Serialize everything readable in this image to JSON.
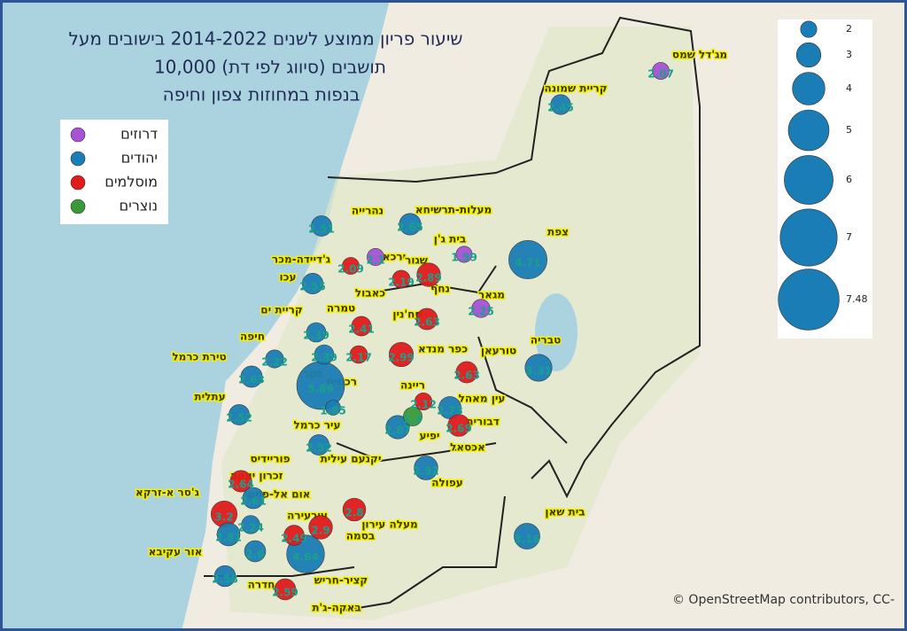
{
  "title": [
    "שיעור פריון ממוצע לשנים 2014-2022 בישובים מעל",
    "10,000 תושבים (סיווג לפי דת)",
    "בנפות במחוזות צפון וחיפה"
  ],
  "legend": [
    {
      "label": "דרוזים",
      "color": "#a653d6"
    },
    {
      "label": "יהודים",
      "color": "#1b7db5"
    },
    {
      "label": "מוסלמים",
      "color": "#e01b1b"
    },
    {
      "label": "נוצרים",
      "color": "#3a9a3a"
    }
  ],
  "size_legend": [
    2,
    3,
    4,
    5,
    6,
    7,
    7.48
  ],
  "bubbles": [
    {
      "value": 2.07,
      "color": "#a653d6"
    },
    {
      "value": 2.45,
      "color": "#1b7db5"
    },
    {
      "value": 2.51,
      "color": "#1b7db5"
    },
    {
      "value": 2.65,
      "color": "#1b7db5"
    },
    {
      "value": 1.99,
      "color": "#a653d6"
    },
    {
      "value": 4.71,
      "color": "#1b7db5"
    },
    {
      "value": 2.09,
      "color": "#e01b1b"
    },
    {
      "value": 2.1,
      "color": "#a653d6"
    },
    {
      "value": 2.19,
      "color": "#e01b1b"
    },
    {
      "value": 2.89,
      "color": "#e01b1b"
    },
    {
      "value": 2.55,
      "color": "#1b7db5"
    },
    {
      "value": 2.25,
      "color": "#a653d6"
    },
    {
      "value": 2.63,
      "color": "#e01b1b"
    },
    {
      "value": 2.41,
      "color": "#e01b1b"
    },
    {
      "value": 2.39,
      "color": "#1b7db5"
    },
    {
      "value": 2.39,
      "color": "#1b7db5"
    },
    {
      "value": 2.17,
      "color": "#e01b1b"
    },
    {
      "value": 2.99,
      "color": "#e01b1b"
    },
    {
      "value": 2.22,
      "color": "#1b7db5"
    },
    {
      "value": 2.63,
      "color": "#e01b1b"
    },
    {
      "value": 3.31,
      "color": "#1b7db5"
    },
    {
      "value": 2.63,
      "color": "#1b7db5"
    },
    {
      "value": 5.86,
      "color": "#1b7db5"
    },
    {
      "value": 1.85,
      "color": "#1b7db5"
    },
    {
      "value": 2.12,
      "color": "#e01b1b"
    },
    {
      "value": 2.73,
      "color": "#1b7db5"
    },
    {
      "value": 2.3,
      "color": "#3a9a3a"
    },
    {
      "value": 2.87,
      "color": "#1b7db5"
    },
    {
      "value": 2.69,
      "color": "#e01b1b"
    },
    {
      "value": 2.52,
      "color": "#1b7db5"
    },
    {
      "value": 2.52,
      "color": "#1b7db5"
    },
    {
      "value": 2.92,
      "color": "#1b7db5"
    },
    {
      "value": 2.64,
      "color": "#e01b1b"
    },
    {
      "value": 2.61,
      "color": "#1b7db5"
    },
    {
      "value": 3.2,
      "color": "#e01b1b"
    },
    {
      "value": 2.24,
      "color": "#1b7db5"
    },
    {
      "value": 2.8,
      "color": "#e01b1b"
    },
    {
      "value": 2.9,
      "color": "#e01b1b"
    },
    {
      "value": 2.49,
      "color": "#e01b1b"
    },
    {
      "value": 2.81,
      "color": "#1b7db5"
    },
    {
      "value": 3.16,
      "color": "#1b7db5"
    },
    {
      "value": 2.6,
      "color": "#1b7db5"
    },
    {
      "value": 4.64,
      "color": "#1b7db5"
    },
    {
      "value": 2.58,
      "color": "#1b7db5"
    },
    {
      "value": 2.59,
      "color": "#e01b1b"
    }
  ],
  "places": [
    "מג'דל שמס",
    "קריית שמונה",
    "מעלות-תרשיחא",
    "נהרייה",
    "צפת",
    "בית ג'ן",
    "ג'דיידה-מכר",
    "ירכא",
    "שגור",
    "עכו",
    "נחף",
    "כאבול",
    "מגאר",
    "סח'נין",
    "קריית ים",
    "טמרה",
    "חיפה",
    "טבריה",
    "טורעאן",
    "כפר מנדא",
    "טירת כרמל",
    "ריינה",
    "רכסים",
    "נשר",
    "עין מאהל",
    "עתלית",
    "דבוריה",
    "עיר כרמל",
    "יפיע",
    "אכסאל",
    "פוריידיס",
    "יקנעם עילית",
    "עפולה",
    "זכרון יעקב",
    "ג'סר א-זרקא",
    "אום אל-פחם",
    "עירעירה",
    "בית שאן",
    "מעלה עירון",
    "בסמה",
    "אור עקיבא",
    "קציר-חריש",
    "חדרה",
    "באקה-ג'ת"
  ],
  "attribution": "© OpenStreetMap contributors, CC-"
}
